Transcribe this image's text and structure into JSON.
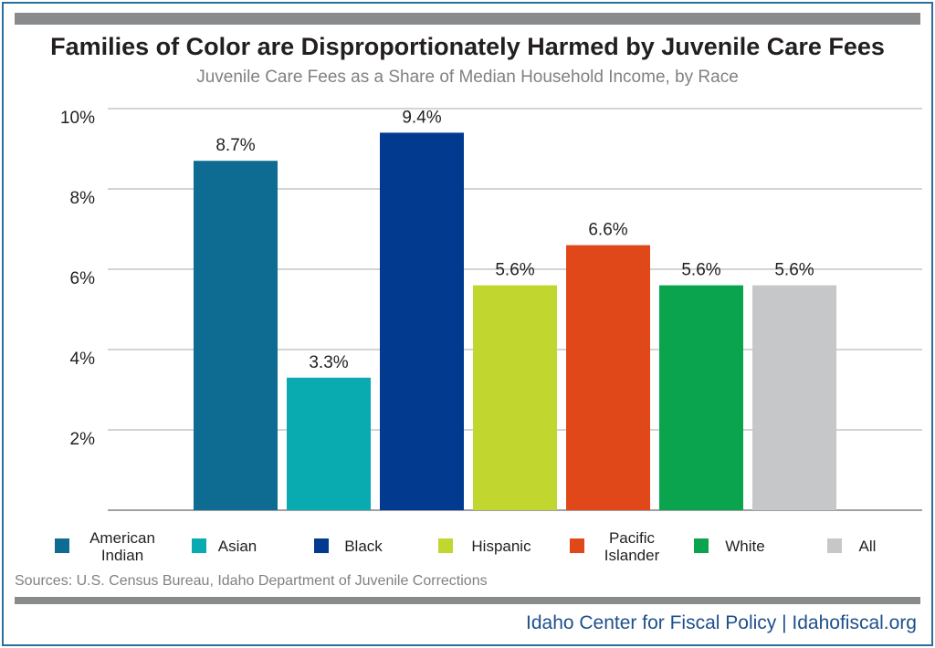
{
  "title": "Families of Color are Disproportionately Harmed by Juvenile Care Fees",
  "subtitle": "Juvenile Care Fees as a Share of Median Household Income, by Race",
  "source": "Sources: U.S. Census Bureau, Idaho Department of Juvenile Corrections",
  "footer": "Idaho Center for Fiscal Policy | Idahofiscal.org",
  "chart_data": {
    "type": "bar",
    "categories": [
      "American Indian",
      "Asian",
      "Black",
      "Hispanic",
      "Pacific Islander",
      "White",
      "All"
    ],
    "values": [
      8.7,
      3.3,
      9.4,
      5.6,
      6.6,
      5.6,
      5.6
    ],
    "data_labels": [
      "8.7%",
      "3.3%",
      "9.4%",
      "5.6%",
      "6.6%",
      "5.6%",
      "5.6%"
    ],
    "colors": [
      "#0e6b91",
      "#0aabb0",
      "#013a8f",
      "#c1d72f",
      "#e14819",
      "#0aa44f",
      "#c6c7c8"
    ],
    "legend": [
      "American\nIndian",
      "Asian",
      "Black",
      "Hispanic",
      "Pacific\nIslander",
      "White",
      "All"
    ],
    "legend_placement": "bottom",
    "yticks": [
      "2%",
      "4%",
      "6%",
      "8%",
      "10%"
    ],
    "ylim": [
      0,
      10
    ],
    "grid": true
  }
}
